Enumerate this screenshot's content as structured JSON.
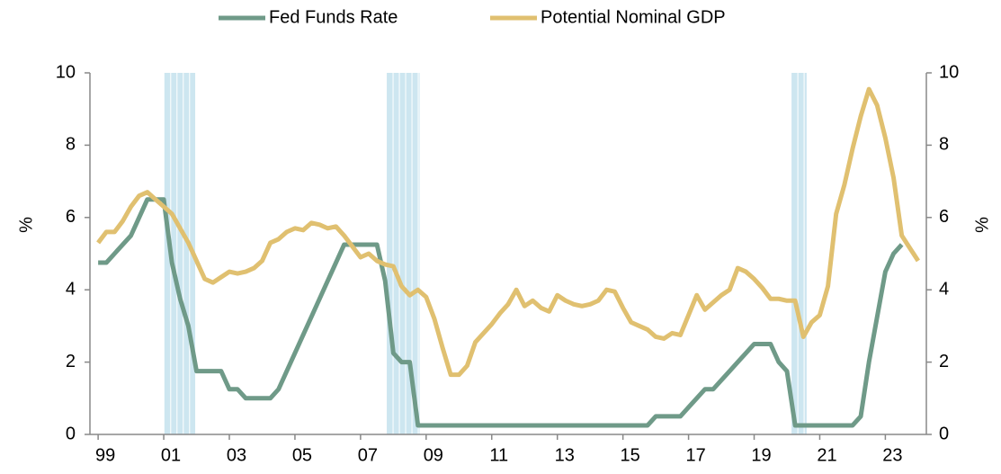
{
  "chart_data": {
    "type": "line",
    "x": [
      1999,
      1999.25,
      1999.5,
      1999.75,
      2000,
      2000.25,
      2000.5,
      2000.75,
      2001,
      2001.25,
      2001.5,
      2001.75,
      2002,
      2002.25,
      2002.5,
      2002.75,
      2003,
      2003.25,
      2003.5,
      2003.75,
      2004,
      2004.25,
      2004.5,
      2004.75,
      2005,
      2005.25,
      2005.5,
      2005.75,
      2006,
      2006.25,
      2006.5,
      2006.75,
      2007,
      2007.25,
      2007.5,
      2007.75,
      2008,
      2008.25,
      2008.5,
      2008.75,
      2009,
      2009.25,
      2009.5,
      2009.75,
      2010,
      2010.25,
      2010.5,
      2010.75,
      2011,
      2011.25,
      2011.5,
      2011.75,
      2012,
      2012.25,
      2012.5,
      2012.75,
      2013,
      2013.25,
      2013.5,
      2013.75,
      2014,
      2014.25,
      2014.5,
      2014.75,
      2015,
      2015.25,
      2015.5,
      2015.75,
      2016,
      2016.25,
      2016.5,
      2016.75,
      2017,
      2017.25,
      2017.5,
      2017.75,
      2018,
      2018.25,
      2018.5,
      2018.75,
      2019,
      2019.25,
      2019.5,
      2019.75,
      2020,
      2020.25,
      2020.5,
      2020.75,
      2021,
      2021.25,
      2021.5,
      2021.75,
      2022,
      2022.25,
      2022.5,
      2022.75,
      2023,
      2023.25,
      2023.5,
      2023.75,
      2024
    ],
    "series": [
      {
        "name": "Fed Funds Rate",
        "color": "#6f9a88",
        "values": [
          4.75,
          4.75,
          5.0,
          5.25,
          5.5,
          6.0,
          6.5,
          6.5,
          6.5,
          4.75,
          3.75,
          3.0,
          1.75,
          1.75,
          1.75,
          1.75,
          1.25,
          1.25,
          1.0,
          1.0,
          1.0,
          1.0,
          1.25,
          1.75,
          2.25,
          2.75,
          3.25,
          3.75,
          4.25,
          4.75,
          5.25,
          5.25,
          5.25,
          5.25,
          5.25,
          4.25,
          2.25,
          2.0,
          2.0,
          0.25,
          0.25,
          0.25,
          0.25,
          0.25,
          0.25,
          0.25,
          0.25,
          0.25,
          0.25,
          0.25,
          0.25,
          0.25,
          0.25,
          0.25,
          0.25,
          0.25,
          0.25,
          0.25,
          0.25,
          0.25,
          0.25,
          0.25,
          0.25,
          0.25,
          0.25,
          0.25,
          0.25,
          0.25,
          0.5,
          0.5,
          0.5,
          0.5,
          0.75,
          1.0,
          1.25,
          1.25,
          1.5,
          1.75,
          2.0,
          2.25,
          2.5,
          2.5,
          2.5,
          2.0,
          1.75,
          0.25,
          0.25,
          0.25,
          0.25,
          0.25,
          0.25,
          0.25,
          0.25,
          0.5,
          2.0,
          3.25,
          4.5,
          5.0,
          5.25,
          null,
          null
        ]
      },
      {
        "name": "Potential Nominal GDP",
        "color": "#e0c070",
        "axis": "y2",
        "values": [
          5.3,
          5.6,
          5.6,
          5.9,
          6.3,
          6.6,
          6.7,
          6.5,
          6.3,
          6.1,
          5.7,
          5.3,
          4.8,
          4.3,
          4.2,
          4.35,
          4.5,
          4.45,
          4.5,
          4.6,
          4.8,
          5.3,
          5.4,
          5.6,
          5.7,
          5.65,
          5.85,
          5.8,
          5.7,
          5.75,
          5.5,
          5.2,
          4.9,
          5.0,
          4.8,
          4.7,
          4.65,
          4.1,
          3.85,
          4.0,
          3.8,
          3.2,
          2.4,
          1.65,
          1.65,
          1.9,
          2.55,
          2.8,
          3.05,
          3.35,
          3.6,
          4.0,
          3.55,
          3.7,
          3.5,
          3.4,
          3.85,
          3.7,
          3.6,
          3.55,
          3.6,
          3.7,
          4.0,
          3.95,
          3.5,
          3.1,
          3.0,
          2.9,
          2.7,
          2.65,
          2.8,
          2.75,
          3.3,
          3.85,
          3.45,
          3.65,
          3.85,
          4.0,
          4.6,
          4.5,
          4.3,
          4.05,
          3.75,
          3.75,
          3.7,
          3.7,
          2.7,
          3.1,
          3.3,
          4.1,
          6.1,
          6.9,
          7.9,
          8.8,
          9.55,
          9.1,
          8.2,
          7.1,
          5.5,
          5.15,
          4.8
        ]
      }
    ],
    "recessions": [
      [
        2001.02,
        2001.96
      ],
      [
        2007.8,
        2008.8
      ],
      [
        2020.14,
        2020.6
      ]
    ],
    "recession_color": "#cde6f0",
    "xlim": [
      1998.75,
      2024.25
    ],
    "xticks": [
      {
        "value": 1999,
        "label": "99"
      },
      {
        "value": 2001,
        "label": "01"
      },
      {
        "value": 2003,
        "label": "03"
      },
      {
        "value": 2005,
        "label": "05"
      },
      {
        "value": 2007,
        "label": "07"
      },
      {
        "value": 2009,
        "label": "09"
      },
      {
        "value": 2011,
        "label": "11"
      },
      {
        "value": 2013,
        "label": "13"
      },
      {
        "value": 2015,
        "label": "15"
      },
      {
        "value": 2017,
        "label": "17"
      },
      {
        "value": 2019,
        "label": "19"
      },
      {
        "value": 2021,
        "label": "21"
      },
      {
        "value": 2023,
        "label": "23"
      }
    ],
    "ylim": [
      0,
      10
    ],
    "yticks": [
      0,
      2,
      4,
      6,
      8,
      10
    ],
    "ylabel": "%",
    "y2lim": [
      0,
      10
    ],
    "y2ticks": [
      0,
      2,
      4,
      6,
      8,
      10
    ],
    "y2label": "%",
    "legend": "top"
  }
}
